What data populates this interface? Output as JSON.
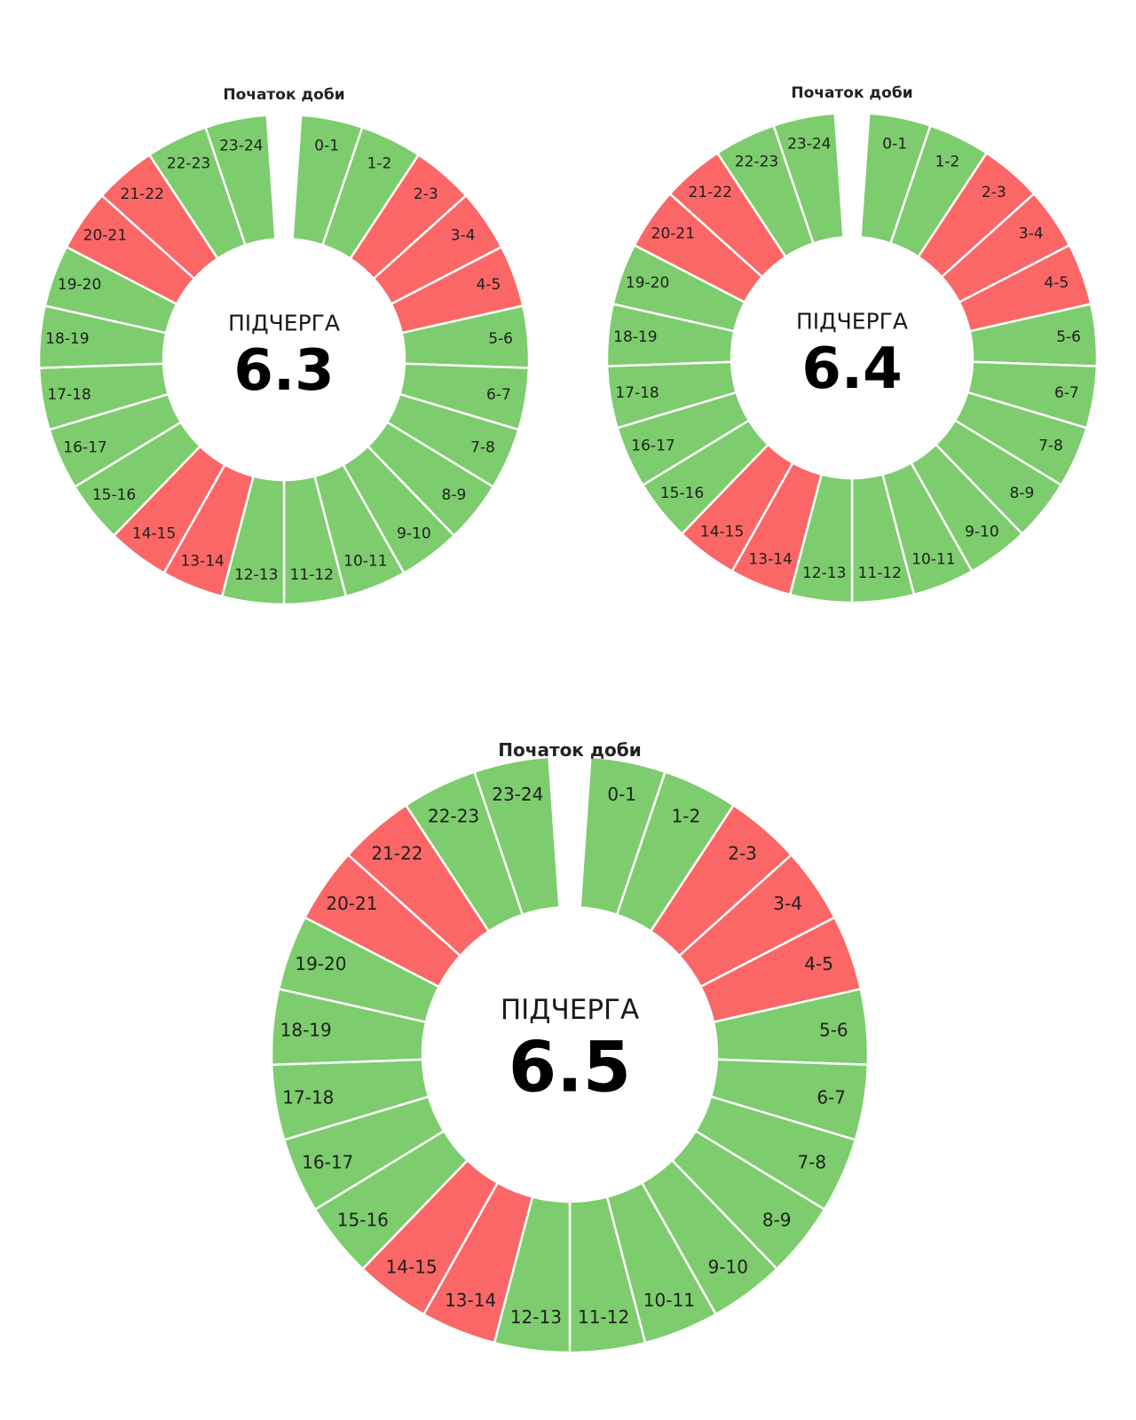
{
  "colors": {
    "on": "#7dcc6d",
    "off": "#fb6767",
    "separator": "#ffffff"
  },
  "chart_data": [
    {
      "type": "pie",
      "variant": "donut",
      "start_label": "Початок доби",
      "center_label": "ПІДЧЕРГА",
      "title": "6.3",
      "categories": [
        "0-1",
        "1-2",
        "2-3",
        "3-4",
        "4-5",
        "5-6",
        "6-7",
        "7-8",
        "8-9",
        "9-10",
        "10-11",
        "11-12",
        "12-13",
        "13-14",
        "14-15",
        "15-16",
        "16-17",
        "17-18",
        "18-19",
        "19-20",
        "20-21",
        "21-22",
        "22-23",
        "23-24"
      ],
      "status": [
        "on",
        "on",
        "off",
        "off",
        "off",
        "on",
        "on",
        "on",
        "on",
        "on",
        "on",
        "on",
        "on",
        "off",
        "off",
        "on",
        "on",
        "on",
        "on",
        "on",
        "off",
        "off",
        "on",
        "on"
      ]
    },
    {
      "type": "pie",
      "variant": "donut",
      "start_label": "Початок доби",
      "center_label": "ПІДЧЕРГА",
      "title": "6.4",
      "categories": [
        "0-1",
        "1-2",
        "2-3",
        "3-4",
        "4-5",
        "5-6",
        "6-7",
        "7-8",
        "8-9",
        "9-10",
        "10-11",
        "11-12",
        "12-13",
        "13-14",
        "14-15",
        "15-16",
        "16-17",
        "17-18",
        "18-19",
        "19-20",
        "20-21",
        "21-22",
        "22-23",
        "23-24"
      ],
      "status": [
        "on",
        "on",
        "off",
        "off",
        "off",
        "on",
        "on",
        "on",
        "on",
        "on",
        "on",
        "on",
        "on",
        "off",
        "off",
        "on",
        "on",
        "on",
        "on",
        "on",
        "off",
        "off",
        "on",
        "on"
      ]
    },
    {
      "type": "pie",
      "variant": "donut",
      "start_label": "Початок доби",
      "center_label": "ПІДЧЕРГА",
      "title": "6.5",
      "categories": [
        "0-1",
        "1-2",
        "2-3",
        "3-4",
        "4-5",
        "5-6",
        "6-7",
        "7-8",
        "8-9",
        "9-10",
        "10-11",
        "11-12",
        "12-13",
        "13-14",
        "14-15",
        "15-16",
        "16-17",
        "17-18",
        "18-19",
        "19-20",
        "20-21",
        "21-22",
        "22-23",
        "23-24"
      ],
      "status": [
        "on",
        "on",
        "off",
        "off",
        "off",
        "on",
        "on",
        "on",
        "on",
        "on",
        "on",
        "on",
        "on",
        "off",
        "off",
        "on",
        "on",
        "on",
        "on",
        "on",
        "off",
        "off",
        "on",
        "on"
      ]
    }
  ]
}
